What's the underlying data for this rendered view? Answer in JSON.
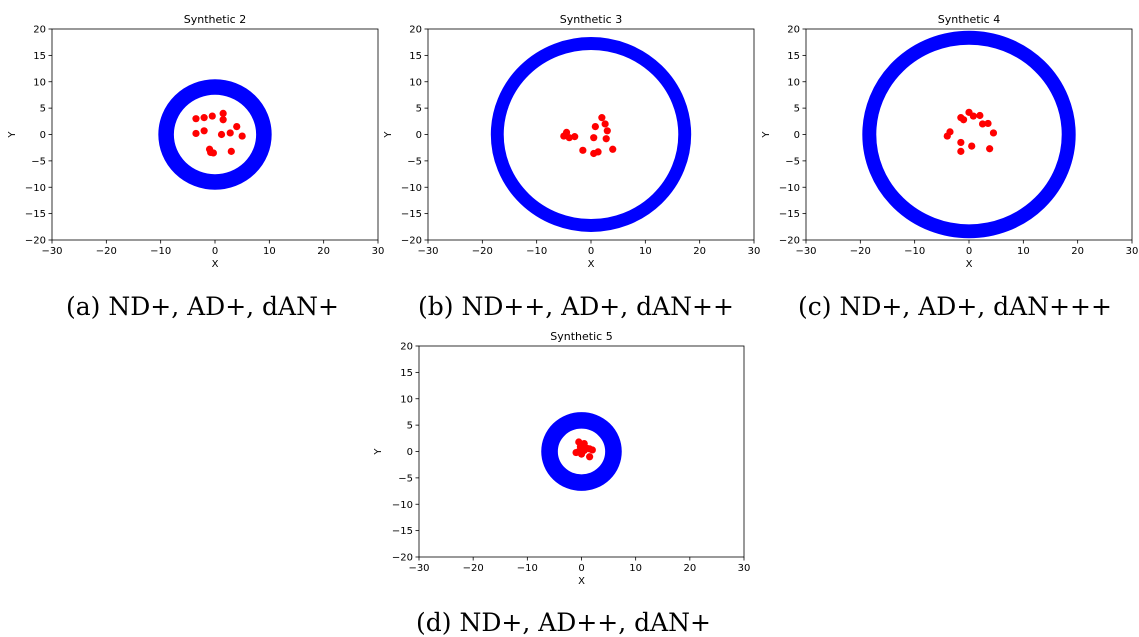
{
  "figures": [
    {
      "caption": "(a) ND+, AD+, dAN+",
      "chart_data": {
        "type": "scatter",
        "title": "Synthetic 2",
        "xlabel": "X",
        "ylabel": "Y",
        "xlim": [
          -30,
          30
        ],
        "ylim": [
          -20,
          20
        ],
        "xticks": [
          -30,
          -20,
          -10,
          0,
          10,
          20,
          30
        ],
        "yticks": [
          -20,
          -15,
          -10,
          -5,
          0,
          5,
          10,
          15,
          20
        ],
        "ring": {
          "color": "#0000ff",
          "inner_radius": 8.0,
          "outer_radius": 10.0,
          "center": [
            0,
            0
          ]
        },
        "points_color": "#ff0000",
        "points": [
          [
            -3.5,
            3
          ],
          [
            -2,
            3.2
          ],
          [
            -0.5,
            3.5
          ],
          [
            1.5,
            4
          ],
          [
            1.5,
            2.8
          ],
          [
            -3.5,
            0.2
          ],
          [
            -2,
            0.7
          ],
          [
            1.2,
            0
          ],
          [
            2.8,
            0.3
          ],
          [
            4,
            1.5
          ],
          [
            5,
            -0.3
          ],
          [
            -1,
            -2.8
          ],
          [
            -0.3,
            -3.5
          ],
          [
            -0.8,
            -3.4
          ],
          [
            3,
            -3.2
          ]
        ],
        "grid": false
      }
    },
    {
      "caption": "(b) ND++, AD+, dAN++",
      "chart_data": {
        "type": "scatter",
        "title": "Synthetic 3",
        "xlabel": "X",
        "ylabel": "Y",
        "xlim": [
          -30,
          30
        ],
        "ylim": [
          -20,
          20
        ],
        "xticks": [
          -30,
          -20,
          -10,
          0,
          10,
          20,
          30
        ],
        "yticks": [
          -20,
          -15,
          -10,
          -5,
          0,
          5,
          10,
          15,
          20
        ],
        "ring": {
          "color": "#0000ff",
          "inner_radius": 16.5,
          "outer_radius": 18.0,
          "center": [
            0,
            0
          ]
        },
        "points_color": "#ff0000",
        "points": [
          [
            -5,
            -0.3
          ],
          [
            -4.5,
            0.4
          ],
          [
            -4,
            -0.6
          ],
          [
            -3,
            -0.4
          ],
          [
            2,
            3.2
          ],
          [
            2.6,
            2
          ],
          [
            3,
            0.7
          ],
          [
            0.8,
            1.5
          ],
          [
            2.8,
            -0.8
          ],
          [
            0.5,
            -0.6
          ],
          [
            -1.5,
            -3
          ],
          [
            0.5,
            -3.6
          ],
          [
            1.3,
            -3.3
          ],
          [
            4,
            -2.8
          ]
        ],
        "grid": false
      }
    },
    {
      "caption": "(c) ND+, AD+, dAN+++",
      "chart_data": {
        "type": "scatter",
        "title": "Synthetic 4",
        "xlabel": "X",
        "ylabel": "Y",
        "xlim": [
          -30,
          30
        ],
        "ylim": [
          -20,
          20
        ],
        "xticks": [
          -30,
          -20,
          -10,
          0,
          10,
          20,
          30
        ],
        "yticks": [
          -20,
          -15,
          -10,
          -5,
          0,
          5,
          10,
          15,
          20
        ],
        "ring": {
          "color": "#0000ff",
          "inner_radius": 17.5,
          "outer_radius": 19.2,
          "center": [
            0,
            0
          ]
        },
        "points_color": "#ff0000",
        "points": [
          [
            0,
            4.2
          ],
          [
            -1.5,
            3.2
          ],
          [
            -1,
            2.8
          ],
          [
            0.8,
            3.5
          ],
          [
            2,
            3.6
          ],
          [
            2.5,
            2
          ],
          [
            3.5,
            2.1
          ],
          [
            4.5,
            0.3
          ],
          [
            -4,
            -0.3
          ],
          [
            -3.5,
            0.5
          ],
          [
            -1.5,
            -1.5
          ],
          [
            0.5,
            -2.2
          ],
          [
            -1.5,
            -3.2
          ],
          [
            3.8,
            -2.7
          ]
        ],
        "grid": false
      }
    },
    {
      "caption": "(d) ND+, AD++, dAN+",
      "chart_data": {
        "type": "scatter",
        "title": "Synthetic 5",
        "xlabel": "X",
        "ylabel": "Y",
        "xlim": [
          -30,
          30
        ],
        "ylim": [
          -20,
          20
        ],
        "xticks": [
          -30,
          -20,
          -10,
          0,
          10,
          20,
          30
        ],
        "yticks": [
          -20,
          -15,
          -10,
          -5,
          0,
          5,
          10,
          15,
          20
        ],
        "ring": {
          "color": "#0000ff",
          "inner_radius": 4.8,
          "outer_radius": 7.0,
          "center": [
            0,
            0
          ]
        },
        "points_color": "#ff0000",
        "points": [
          [
            -0.5,
            1.8
          ],
          [
            0.5,
            1.5
          ],
          [
            1,
            0.6
          ],
          [
            1.5,
            0.5
          ],
          [
            -0.2,
            0.9
          ],
          [
            0.5,
            0.2
          ],
          [
            2,
            0.3
          ],
          [
            -0.5,
            0
          ],
          [
            -1,
            -0.2
          ],
          [
            0,
            -0.5
          ],
          [
            1.5,
            -1
          ]
        ],
        "grid": false
      }
    }
  ]
}
